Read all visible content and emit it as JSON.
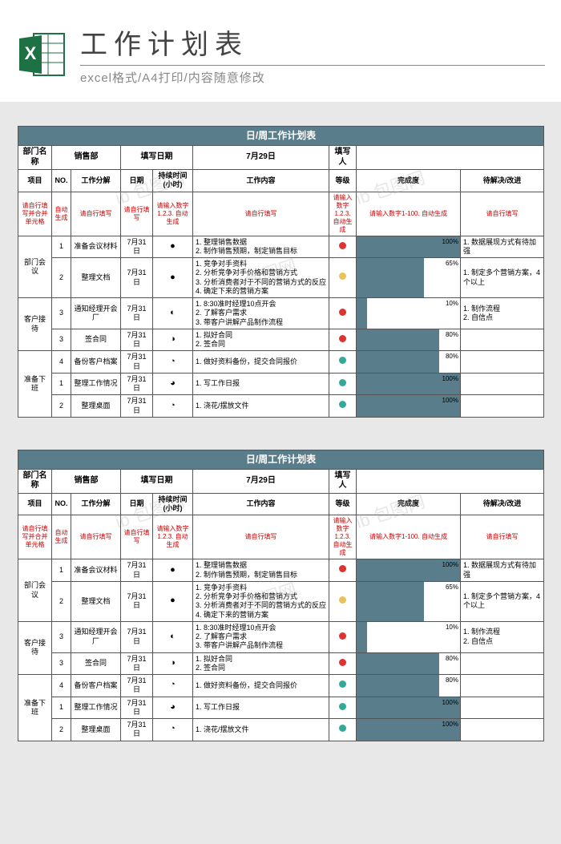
{
  "page": {
    "big_title": "工作计划表",
    "sub_title": "excel格式/A4打印/内容随意修改",
    "excel_label": "X"
  },
  "sheet": {
    "title": "日/周工作计划表",
    "header": {
      "dept_label": "部门名称",
      "dept_value": "销售部",
      "date_label": "填写日期",
      "date_value": "7月29日",
      "person_label": "填写人",
      "person_value": ""
    },
    "columns": {
      "c1": "项目",
      "c2": "NO.",
      "c3": "工作分解",
      "c4": "日期",
      "c5": "持续时间(小时)",
      "c6": "工作内容",
      "c7": "等级",
      "c8": "完成度",
      "c9": "待解决/改进"
    },
    "hints": {
      "h1": "请自行填写并合并单元格",
      "h2": "自动生成",
      "h3": "请自行填写",
      "h4": "请自行填写",
      "h5": "请输入数字1.2.3. 自动生成",
      "h6": "请自行填写",
      "h7": "请输入数字1.2.3. 自动生成",
      "h8": "请输入数字1-100. 自动生成",
      "h9": "请自行填写"
    },
    "groups": [
      {
        "name": "部门会议",
        "rows": [
          {
            "no": "1",
            "task": "准备会议材料",
            "date": "7月31日",
            "dur": "●",
            "content": "1. 整理销售数据\n2. 制作销售预期，制定销售目标",
            "level": "#d33",
            "pct": 100,
            "note": "1. 数据展现方式有待加强"
          },
          {
            "no": "2",
            "task": "整理文档",
            "date": "7月31日",
            "dur": "●",
            "content": "1. 竞争对手资料\n2. 分析竞争对手价格和营销方式\n3. 分析消费者对于不同的营销方式的反应\n4. 确定下来的营销方案",
            "level": "#e8c25a",
            "pct": 65,
            "note": "1. 制定多个营销方案，4个以上"
          }
        ]
      },
      {
        "name": "客户接待",
        "rows": [
          {
            "no": "3",
            "task": "通知经理开会厂",
            "date": "7月31日",
            "dur": "◐",
            "content": "1. 8:30准时经理10点开会\n2. 了解客户需求\n3. 带客户讲解产品制作流程",
            "level": "#d33",
            "pct": 10,
            "note": "1. 制作流程\n2. 自信点"
          },
          {
            "no": "3",
            "task": "签合同",
            "date": "7月31日",
            "dur": "◑",
            "content": "1. 拟好合同\n2. 签合同",
            "level": "#d33",
            "pct": 80,
            "note": ""
          }
        ]
      },
      {
        "name": "准备下班",
        "rows": [
          {
            "no": "4",
            "task": "备份客户档案",
            "date": "7月31日",
            "dur": "◔",
            "content": "1. 做好资料备份，提交合同报价",
            "level": "#3a9",
            "pct": 80,
            "note": ""
          },
          {
            "no": "1",
            "task": "整理工作情况",
            "date": "7月31日",
            "dur": "◕",
            "content": "1. 写工作日报",
            "level": "#3a9",
            "pct": 100,
            "note": ""
          },
          {
            "no": "2",
            "task": "整理桌面",
            "date": "7月31日",
            "dur": "◔",
            "content": "1. 浇花/摆放文件",
            "level": "#3a9",
            "pct": 100,
            "note": ""
          }
        ]
      }
    ]
  },
  "colors": {
    "accent": "#5a7d8c",
    "bg": "#e8e8e8",
    "border": "#555555",
    "red": "#cc0000"
  }
}
